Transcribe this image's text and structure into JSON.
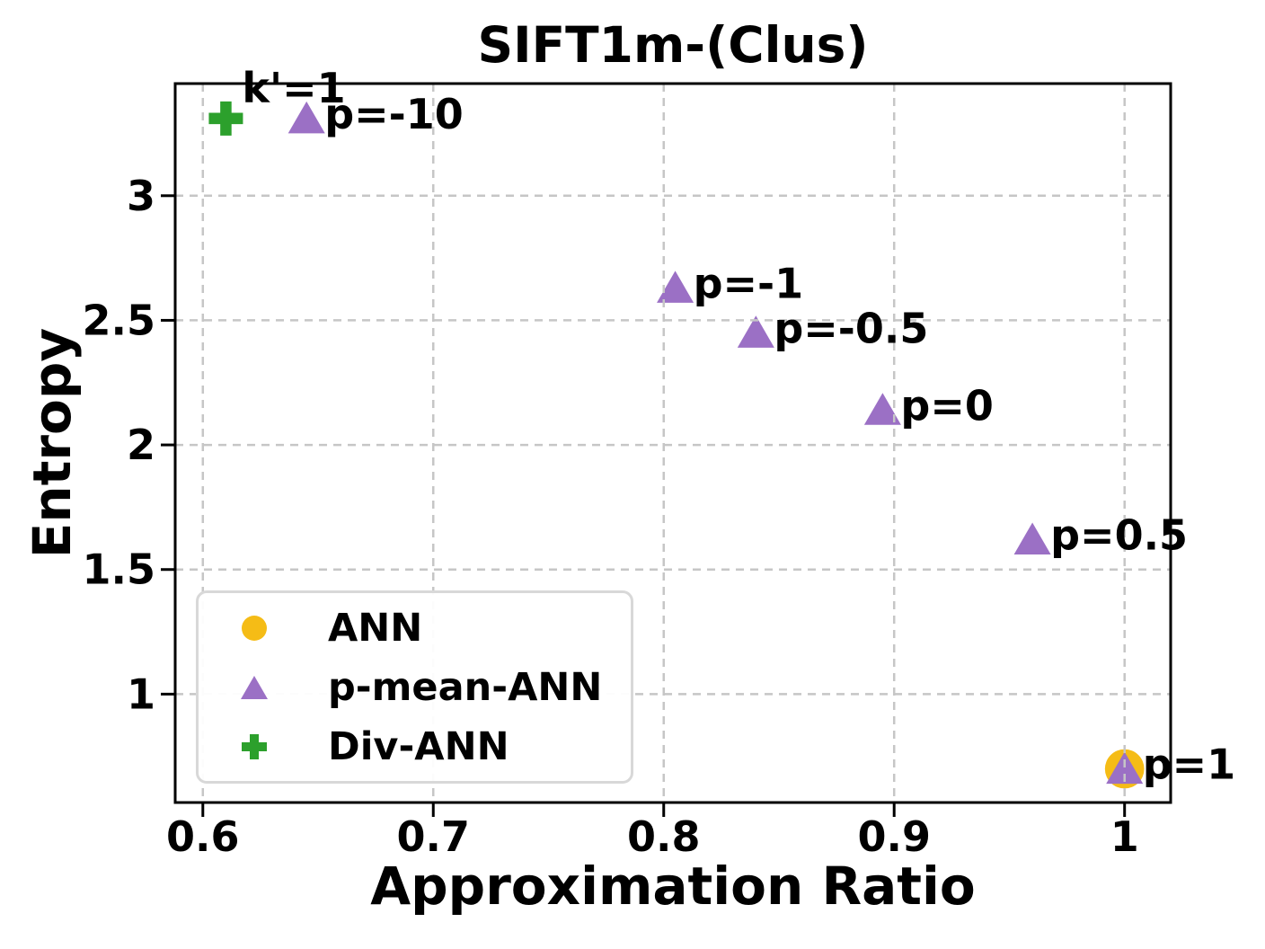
{
  "title": "SIFT1m-(Clus)",
  "xlabel": "Approximation Ratio",
  "ylabel": "Entropy",
  "colors": {
    "ann_yellow": "#F5BC16",
    "pmean_purple": "#9B70C5",
    "div_green": "#2CA02C",
    "grid": "#C6C6C6",
    "axis": "#000000",
    "legend_border": "#D8D8D8",
    "text": "#000000"
  },
  "chart_data": {
    "type": "scatter",
    "title": "SIFT1m-(Clus)",
    "xlabel": "Approximation Ratio",
    "ylabel": "Entropy",
    "xlim": [
      0.588,
      1.02
    ],
    "ylim": [
      0.565,
      3.45
    ],
    "xticks": {
      "values": [
        0.6,
        0.7,
        0.8,
        0.9,
        1.0
      ],
      "labels": [
        "0.6",
        "0.7",
        "0.8",
        "0.9",
        "1"
      ]
    },
    "yticks": {
      "values": [
        1,
        1.5,
        2,
        2.5,
        3
      ],
      "labels": [
        "1",
        "1.5",
        "2",
        "2.5",
        "3"
      ]
    },
    "grid": true,
    "legend_position": "lower-left",
    "series": [
      {
        "name": "ANN",
        "marker": "circle",
        "color": "#F5BC16",
        "points": [
          {
            "x": 1.0,
            "y": 0.7
          }
        ]
      },
      {
        "name": "p-mean-ANN",
        "marker": "triangle",
        "color": "#9B70C5",
        "points": [
          {
            "x": 0.645,
            "y": 3.31,
            "label": "p=-10"
          },
          {
            "x": 0.805,
            "y": 2.63,
            "label": "p=-1"
          },
          {
            "x": 0.84,
            "y": 2.45,
            "label": "p=-0.5"
          },
          {
            "x": 0.895,
            "y": 2.14,
            "label": "p=0"
          },
          {
            "x": 0.96,
            "y": 1.62,
            "label": "p=0.5"
          },
          {
            "x": 1.0,
            "y": 0.7,
            "label": "p=1"
          }
        ]
      },
      {
        "name": "Div-ANN",
        "marker": "plus",
        "color": "#2CA02C",
        "points": [
          {
            "x": 0.61,
            "y": 3.31,
            "label": "k'=1",
            "label_pos": "above"
          }
        ]
      }
    ]
  }
}
